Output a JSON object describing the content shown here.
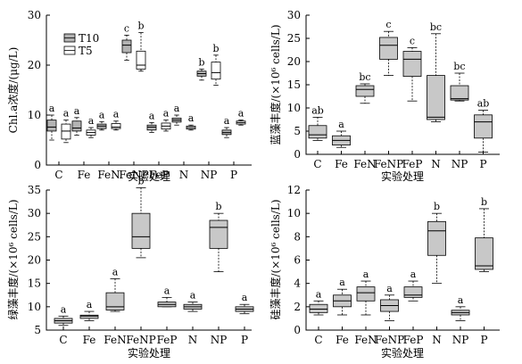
{
  "figure": {
    "type": "box"
  },
  "chart_data": [
    {
      "type": "box",
      "panel": "top-left",
      "categories": [
        "C",
        "Fe",
        "FeN",
        "FeNP",
        "FeP",
        "N",
        "NP",
        "P"
      ],
      "xlabel": "实验处理",
      "ylabel": "Chl.a浓度/(μg/L)",
      "ylim": [
        0,
        30
      ],
      "yticks": [
        0,
        10,
        20,
        30
      ],
      "legend": {
        "position": "top-left",
        "entries": [
          "T10",
          "T5"
        ]
      },
      "series": [
        {
          "name": "T10",
          "fill": "#b3b3b3",
          "boxes": [
            {
              "min": 5.0,
              "q1": 6.8,
              "median": 7.6,
              "q3": 9.0,
              "max": 10.0,
              "label": "a"
            },
            {
              "min": 6.0,
              "q1": 6.8,
              "median": 7.4,
              "q3": 8.8,
              "max": 9.5,
              "label": "a"
            },
            {
              "min": 7.0,
              "q1": 7.3,
              "median": 7.8,
              "q3": 8.2,
              "max": 8.7,
              "label": "a"
            },
            {
              "min": 21.0,
              "q1": 22.5,
              "median": 24.0,
              "q3": 25.0,
              "max": 26.0,
              "label": "c"
            },
            {
              "min": 6.5,
              "q1": 7.0,
              "median": 7.6,
              "q3": 8.0,
              "max": 8.5,
              "label": "a"
            },
            {
              "min": 8.0,
              "q1": 8.6,
              "median": 9.0,
              "q3": 9.4,
              "max": 10.0,
              "label": "a"
            },
            {
              "min": 17.0,
              "q1": 17.8,
              "median": 18.3,
              "q3": 18.8,
              "max": 19.2,
              "label": "b"
            },
            {
              "min": 5.5,
              "q1": 6.1,
              "median": 6.5,
              "q3": 7.0,
              "max": 7.5,
              "label": "a"
            }
          ]
        },
        {
          "name": "T5",
          "fill": "#ffffff",
          "boxes": [
            {
              "min": 4.5,
              "q1": 5.2,
              "median": 6.8,
              "q3": 8.2,
              "max": 9.0,
              "label": "a"
            },
            {
              "min": 5.5,
              "q1": 6.0,
              "median": 6.5,
              "q3": 7.0,
              "max": 7.5,
              "label": "a"
            },
            {
              "min": 7.0,
              "q1": 7.3,
              "median": 7.6,
              "q3": 8.3,
              "max": 8.8,
              "label": "a"
            },
            {
              "min": 18.8,
              "q1": 19.2,
              "median": 20.0,
              "q3": 22.8,
              "max": 26.5,
              "label": "b"
            },
            {
              "min": 6.8,
              "q1": 7.2,
              "median": 7.8,
              "q3": 8.4,
              "max": 9.0,
              "label": "a"
            },
            {
              "min": 7.0,
              "q1": 7.2,
              "median": 7.5,
              "q3": 7.8,
              "max": 8.0,
              "label": "a"
            },
            {
              "min": 16.0,
              "q1": 17.2,
              "median": 18.5,
              "q3": 20.6,
              "max": 22.0,
              "label": "b"
            },
            {
              "min": 8.0,
              "q1": 8.2,
              "median": 8.5,
              "q3": 8.8,
              "max": 9.0,
              "label": "a"
            }
          ]
        }
      ]
    },
    {
      "type": "box",
      "panel": "top-right",
      "categories": [
        "C",
        "Fe",
        "FeN",
        "FeNP",
        "FeP",
        "N",
        "NP",
        "P"
      ],
      "xlabel": "实验处理",
      "ylabel": "蓝藻丰度/(×10⁶ cells/L)",
      "ylim": [
        0,
        30
      ],
      "yticks": [
        0,
        5,
        10,
        15,
        20,
        25,
        30
      ],
      "series": [
        {
          "fill": "#c8c8c8",
          "boxes": [
            {
              "min": 3.0,
              "q1": 3.5,
              "median": 4.2,
              "q3": 6.2,
              "max": 8.0,
              "label": "ab"
            },
            {
              "min": 1.5,
              "q1": 2.0,
              "median": 3.0,
              "q3": 4.0,
              "max": 5.0,
              "label": "a"
            },
            {
              "min": 11.0,
              "q1": 12.5,
              "median": 14.0,
              "q3": 14.8,
              "max": 15.2,
              "label": "bc"
            },
            {
              "min": 17.0,
              "q1": 20.5,
              "median": 23.5,
              "q3": 25.2,
              "max": 26.5,
              "label": "c"
            },
            {
              "min": 11.5,
              "q1": 16.8,
              "median": 20.5,
              "q3": 22.2,
              "max": 23.0,
              "label": "c"
            },
            {
              "min": 7.0,
              "q1": 7.5,
              "median": 8.0,
              "q3": 17.0,
              "max": 26.0,
              "label": "bc"
            },
            {
              "min": 11.5,
              "q1": 11.7,
              "median": 12.0,
              "q3": 14.8,
              "max": 17.5,
              "label": "bc"
            },
            {
              "min": 0.5,
              "q1": 3.5,
              "median": 7.0,
              "q3": 8.5,
              "max": 9.5,
              "label": "ab"
            }
          ]
        }
      ]
    },
    {
      "type": "box",
      "panel": "bottom-left",
      "categories": [
        "C",
        "Fe",
        "FeN",
        "FeNP",
        "FeP",
        "N",
        "NP",
        "P"
      ],
      "xlabel": "实验处理",
      "ylabel": "绿藻丰度/(×10⁶ cells/L)",
      "ylim": [
        5,
        35
      ],
      "yticks": [
        5,
        10,
        15,
        20,
        25,
        30,
        35
      ],
      "series": [
        {
          "fill": "#c8c8c8",
          "boxes": [
            {
              "min": 6.0,
              "q1": 6.5,
              "median": 7.0,
              "q3": 7.5,
              "max": 8.0,
              "label": "a"
            },
            {
              "min": 7.0,
              "q1": 7.5,
              "median": 8.0,
              "q3": 8.2,
              "max": 9.0,
              "label": "a"
            },
            {
              "min": 9.0,
              "q1": 9.3,
              "median": 10.0,
              "q3": 13.0,
              "max": 16.0,
              "label": "a"
            },
            {
              "min": 20.5,
              "q1": 22.5,
              "median": 25.0,
              "q3": 30.0,
              "max": 35.5,
              "label": "b"
            },
            {
              "min": 10.0,
              "q1": 10.0,
              "median": 10.5,
              "q3": 11.0,
              "max": 12.0,
              "label": "a"
            },
            {
              "min": 9.0,
              "q1": 9.5,
              "median": 10.0,
              "q3": 10.5,
              "max": 11.0,
              "label": "a"
            },
            {
              "min": 17.5,
              "q1": 22.5,
              "median": 27.0,
              "q3": 28.5,
              "max": 30.0,
              "label": "b"
            },
            {
              "min": 8.5,
              "q1": 9.0,
              "median": 9.5,
              "q3": 10.0,
              "max": 10.5,
              "label": "a"
            }
          ]
        }
      ]
    },
    {
      "type": "box",
      "panel": "bottom-right",
      "categories": [
        "C",
        "Fe",
        "FeN",
        "FeNP",
        "FeP",
        "N",
        "NP",
        "P"
      ],
      "xlabel": "实验处理",
      "ylabel": "硅藻丰度/(×10⁶ cells/L)",
      "ylim": [
        0,
        12
      ],
      "yticks": [
        0,
        2,
        4,
        6,
        8,
        10,
        12
      ],
      "series": [
        {
          "fill": "#c8c8c8",
          "boxes": [
            {
              "min": 1.3,
              "q1": 1.5,
              "median": 1.8,
              "q3": 2.2,
              "max": 2.5,
              "label": "a"
            },
            {
              "min": 1.3,
              "q1": 2.0,
              "median": 2.5,
              "q3": 3.0,
              "max": 3.5,
              "label": "a"
            },
            {
              "min": 1.3,
              "q1": 2.5,
              "median": 3.2,
              "q3": 3.7,
              "max": 4.2,
              "label": "a"
            },
            {
              "min": 0.8,
              "q1": 1.6,
              "median": 2.1,
              "q3": 2.6,
              "max": 3.0,
              "label": "a"
            },
            {
              "min": 2.5,
              "q1": 2.8,
              "median": 3.0,
              "q3": 3.7,
              "max": 4.2,
              "label": "a"
            },
            {
              "min": 4.0,
              "q1": 6.4,
              "median": 8.5,
              "q3": 9.3,
              "max": 10.0,
              "label": "b"
            },
            {
              "min": 0.8,
              "q1": 1.3,
              "median": 1.5,
              "q3": 1.7,
              "max": 2.0,
              "label": "a"
            },
            {
              "min": 5.0,
              "q1": 5.2,
              "median": 5.5,
              "q3": 7.9,
              "max": 10.4,
              "label": "b"
            }
          ]
        }
      ]
    }
  ]
}
